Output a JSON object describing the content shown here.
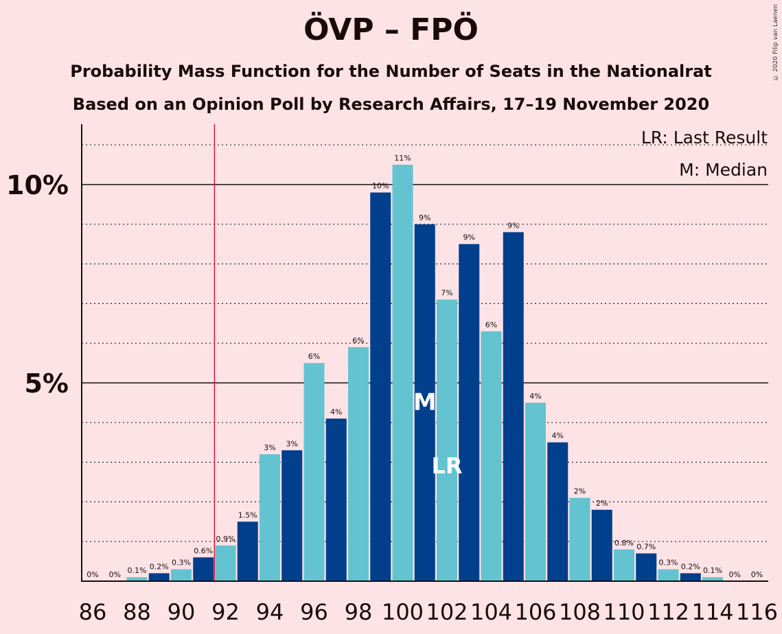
{
  "title": "ÖVP – FPÖ",
  "subtitle1": "Probability Mass Function for the Number of Seats in the Nationalrat",
  "subtitle2": "Based on an Opinion Poll by Research Affairs, 17–19 November 2020",
  "copyright": "© 2020 Filip van Laenen",
  "legend": {
    "lr": "LR: Last Result",
    "m": "M: Median"
  },
  "colors": {
    "background": "#fde3e6",
    "dark_bar": "#003f8c",
    "light_bar": "#63c3d0",
    "majority_line": "#e0103a",
    "text": "#1a0a0a"
  },
  "chart_data": {
    "type": "bar",
    "seats": [
      86,
      87,
      88,
      89,
      90,
      91,
      92,
      93,
      94,
      95,
      96,
      97,
      98,
      99,
      100,
      101,
      102,
      103,
      104,
      105,
      106,
      107,
      108,
      109,
      110,
      111,
      112,
      113,
      114,
      115,
      116
    ],
    "values": [
      0,
      0,
      0.1,
      0.2,
      0.3,
      0.6,
      0.9,
      1.5,
      3.2,
      3.3,
      5.5,
      4.1,
      5.9,
      9.8,
      10.5,
      9.0,
      7.1,
      8.5,
      6.3,
      8.8,
      4.5,
      3.5,
      2.1,
      1.8,
      0.8,
      0.7,
      0.3,
      0.2,
      0.1,
      0,
      0
    ],
    "labels": [
      "0%",
      "0%",
      "0.1%",
      "0.2%",
      "0.3%",
      "0.6%",
      "0.9%",
      "1.5%",
      "3%",
      "3%",
      "6%",
      "4%",
      "6%",
      "10%",
      "11%",
      "9%",
      "7%",
      "9%",
      "6%",
      "9%",
      "4%",
      "4%",
      "2%",
      "2%",
      "0.8%",
      "0.7%",
      "0.3%",
      "0.2%",
      "0.1%",
      "0%",
      "0%"
    ],
    "xticks": [
      "86",
      "88",
      "90",
      "92",
      "94",
      "96",
      "98",
      "100",
      "102",
      "104",
      "106",
      "108",
      "110",
      "112",
      "114",
      "116"
    ],
    "yticks": [
      {
        "value": 5,
        "label": "5%"
      },
      {
        "value": 10,
        "label": "10%"
      }
    ],
    "ylim": [
      0,
      11.5
    ],
    "majority_line_at": 91.5,
    "median_seat": 101,
    "median_label": "M",
    "last_result_seat": 102,
    "last_result_label": "LR"
  }
}
